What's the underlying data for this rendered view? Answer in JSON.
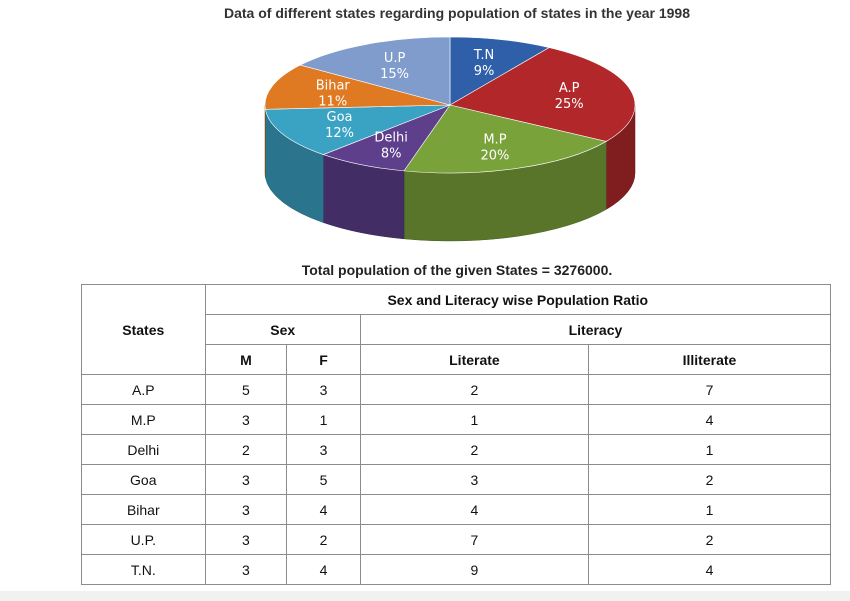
{
  "chart_data": {
    "type": "pie",
    "title": "Data of different states regarding population of states in the year 1998",
    "slices": [
      {
        "label": "T.N",
        "value": 9,
        "value_label": "9%",
        "color": "#2e5fa8"
      },
      {
        "label": "A.P",
        "value": 25,
        "value_label": "25%",
        "color": "#b2282a"
      },
      {
        "label": "M.P",
        "value": 20,
        "value_label": "20%",
        "color": "#7aa23a"
      },
      {
        "label": "Delhi",
        "value": 8,
        "value_label": "8%",
        "color": "#5d3f8c"
      },
      {
        "label": "Goa",
        "value": 12,
        "value_label": "12%",
        "color": "#3aa3c4"
      },
      {
        "label": "Bihar",
        "value": 11,
        "value_label": "11%",
        "color": "#e07a22"
      },
      {
        "label": "U.P",
        "value": 15,
        "value_label": "15%",
        "color": "#7f9ccc"
      }
    ]
  },
  "total_note": "Total population of the given States = 3276000.",
  "table": {
    "states_header": "States",
    "group_header": "Sex and Literacy wise Population Ratio",
    "sex_header": "Sex",
    "literacy_header": "Literacy",
    "m_header": "M",
    "f_header": "F",
    "literate_header": "Literate",
    "illiterate_header": "Illiterate",
    "rows": [
      {
        "state": "A.P",
        "m": "5",
        "f": "3",
        "literate": "2",
        "illiterate": "7"
      },
      {
        "state": "M.P",
        "m": "3",
        "f": "1",
        "literate": "1",
        "illiterate": "4"
      },
      {
        "state": "Delhi",
        "m": "2",
        "f": "3",
        "literate": "2",
        "illiterate": "1"
      },
      {
        "state": "Goa",
        "m": "3",
        "f": "5",
        "literate": "3",
        "illiterate": "2"
      },
      {
        "state": "Bihar",
        "m": "3",
        "f": "4",
        "literate": "4",
        "illiterate": "1"
      },
      {
        "state": "U.P.",
        "m": "3",
        "f": "2",
        "literate": "7",
        "illiterate": "2"
      },
      {
        "state": "T.N.",
        "m": "3",
        "f": "4",
        "literate": "9",
        "illiterate": "4"
      }
    ]
  }
}
